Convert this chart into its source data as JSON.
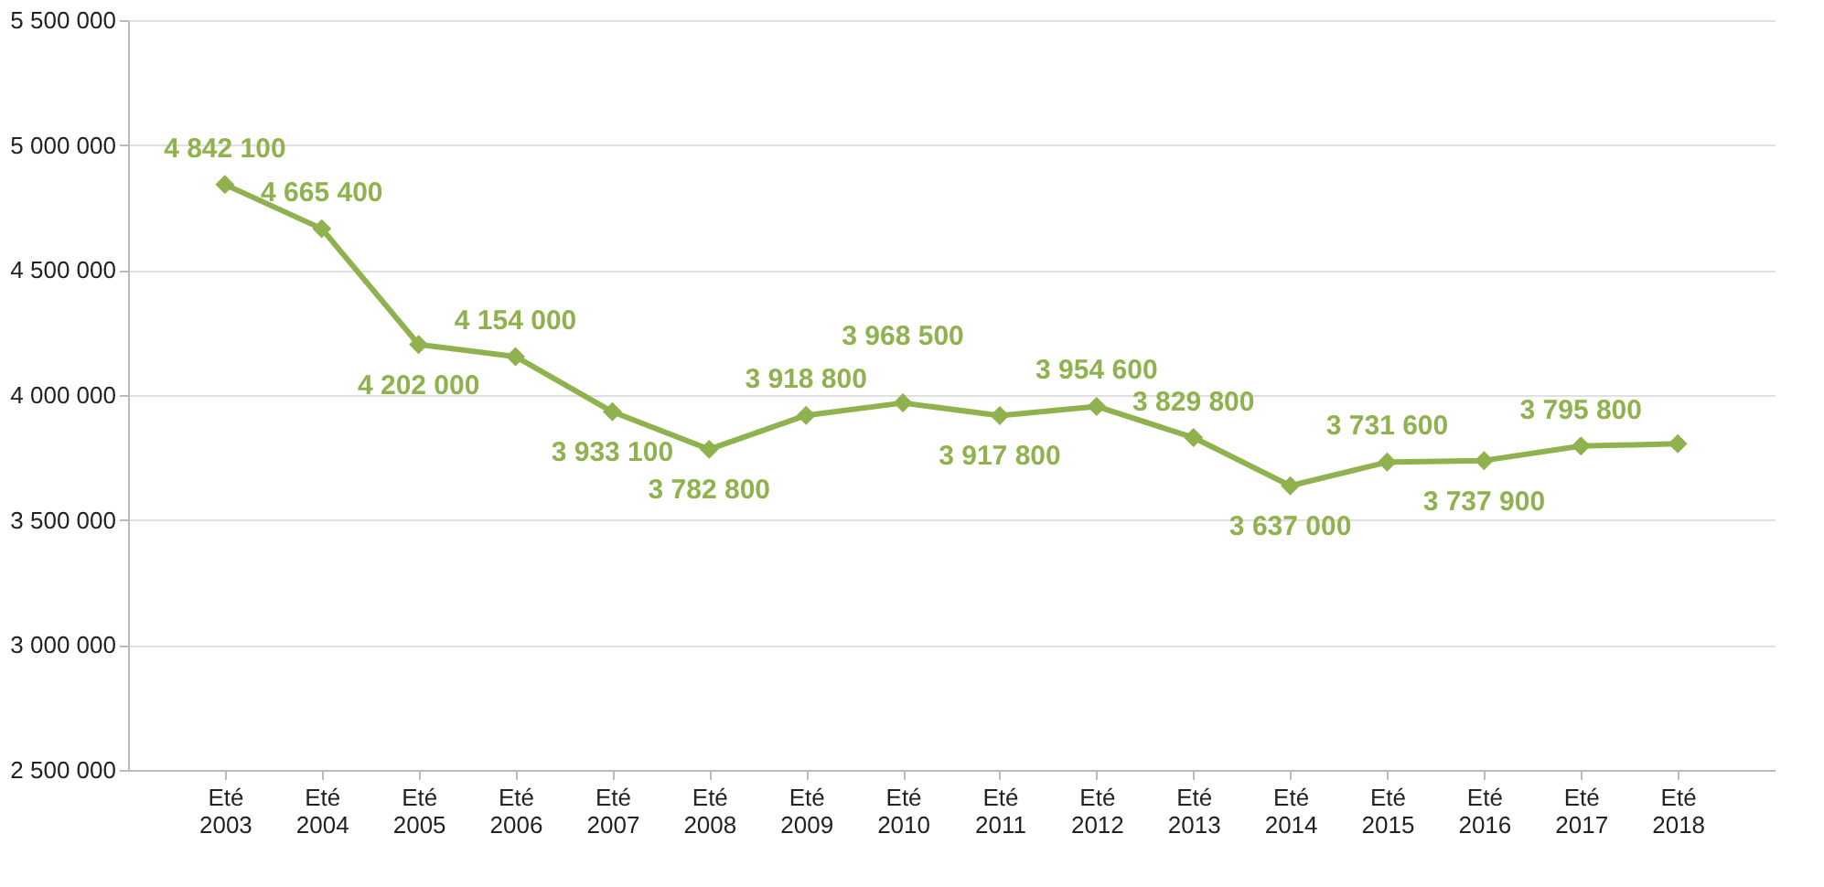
{
  "chart_data": {
    "type": "line",
    "categories": [
      "Eté 2003",
      "Eté 2004",
      "Eté 2005",
      "Eté 2006",
      "Eté 2007",
      "Eté 2008",
      "Eté 2009",
      "Eté 2010",
      "Eté 2011",
      "Eté 2012",
      "Eté 2013",
      "Eté 2014",
      "Eté 2015",
      "Eté 2016",
      "Eté 2017",
      "Eté 2018"
    ],
    "series": [
      {
        "color": "#8fb24e",
        "values": [
          4842100,
          4665400,
          4202000,
          4154000,
          3933100,
          3782800,
          3918800,
          3968500,
          3917800,
          3954600,
          3829800,
          3637000,
          3731600,
          3737900,
          3795800,
          3805000
        ],
        "value_labels": [
          "4 842 100",
          "4 665 400",
          "4 202 000",
          "4 154 000",
          "3 933 100",
          "3 782 800",
          "3 918 800",
          "3 968 500",
          "3 917 800",
          "3 954 600",
          "3 829 800",
          "3 637 000",
          "3 731 600",
          "3 737 900",
          "3 795 800",
          null
        ]
      }
    ],
    "ylim": [
      2500000,
      5500000
    ],
    "yticks": [
      2500000,
      3000000,
      3500000,
      4000000,
      4500000,
      5000000,
      5500000
    ],
    "grid": "y",
    "marker": "diamond",
    "line_style": "solid"
  }
}
